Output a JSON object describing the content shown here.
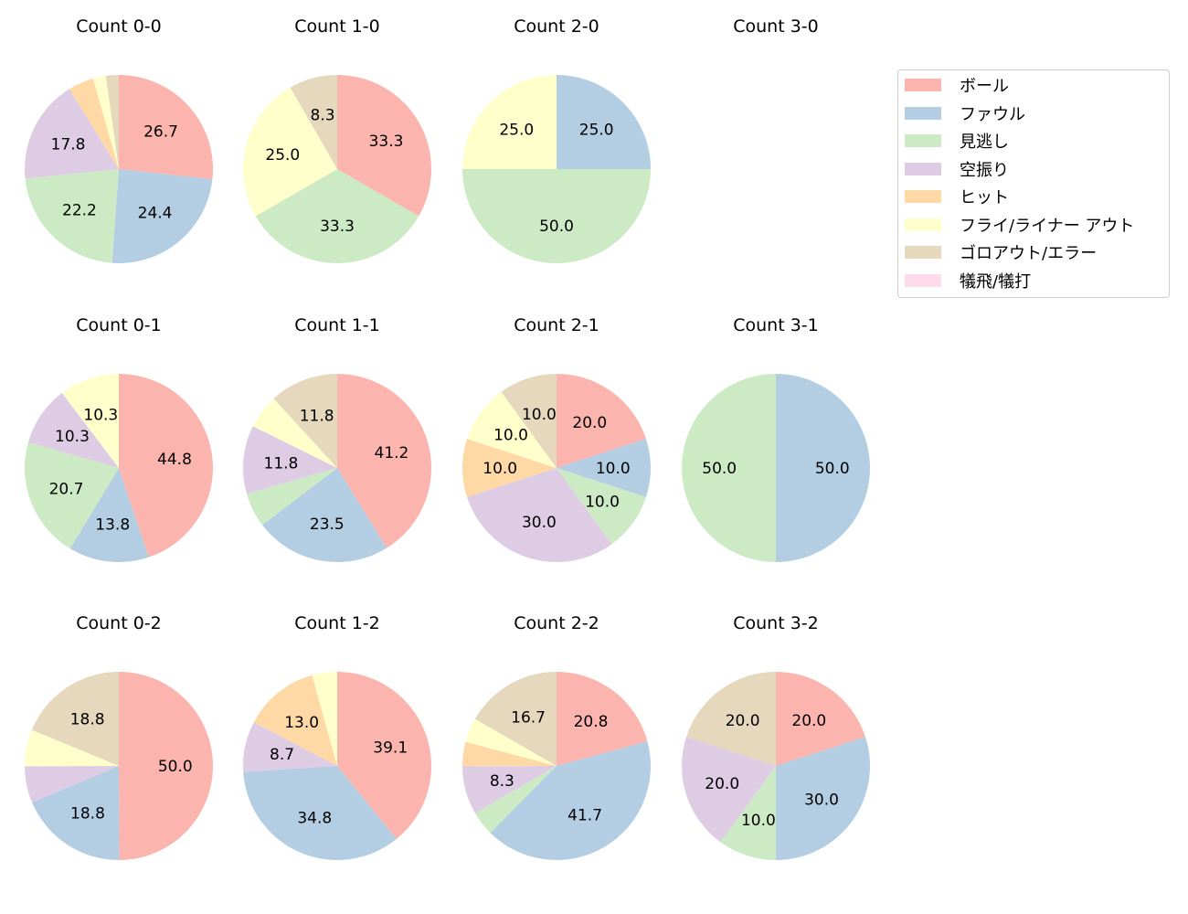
{
  "chart_data": {
    "type": "pie",
    "legend_placement": "upper-right",
    "categories": [
      "ボール",
      "ファウル",
      "見逃し",
      "空振り",
      "ヒット",
      "フライ/ライナー アウト",
      "ゴロアウト/エラー",
      "犠飛/犠打"
    ],
    "colors": [
      "#fbb4ae",
      "#b3cde3",
      "#ccebc5",
      "#decbe4",
      "#fed9a6",
      "#ffffcc",
      "#e5d8bd",
      "#fddaec"
    ],
    "charts": [
      {
        "title": "Count 0-0",
        "values": [
          26.7,
          24.4,
          22.2,
          17.8,
          4.4,
          2.2,
          2.2,
          0
        ]
      },
      {
        "title": "Count 1-0",
        "values": [
          33.3,
          0,
          33.3,
          0,
          0,
          25.0,
          8.3,
          0
        ]
      },
      {
        "title": "Count 2-0",
        "values": [
          0,
          25.0,
          50.0,
          0,
          0,
          25.0,
          0,
          0
        ]
      },
      {
        "title": "Count 3-0",
        "values": []
      },
      {
        "title": "Count 0-1",
        "values": [
          44.8,
          13.8,
          20.7,
          10.3,
          0,
          10.3,
          0,
          0
        ]
      },
      {
        "title": "Count 1-1",
        "values": [
          41.2,
          23.5,
          5.9,
          11.8,
          0,
          5.9,
          11.8,
          0
        ]
      },
      {
        "title": "Count 2-1",
        "values": [
          20.0,
          10.0,
          10.0,
          30.0,
          10.0,
          10.0,
          10.0,
          0
        ]
      },
      {
        "title": "Count 3-1",
        "values": [
          0,
          50.0,
          50.0,
          0,
          0,
          0,
          0,
          0
        ]
      },
      {
        "title": "Count 0-2",
        "values": [
          50.0,
          18.8,
          0,
          6.3,
          0,
          6.3,
          18.8,
          0
        ]
      },
      {
        "title": "Count 1-2",
        "values": [
          39.1,
          34.8,
          0,
          8.7,
          13.0,
          4.3,
          0,
          0
        ]
      },
      {
        "title": "Count 2-2",
        "values": [
          20.8,
          41.7,
          4.2,
          8.3,
          4.2,
          4.2,
          16.7,
          0
        ]
      },
      {
        "title": "Count 3-2",
        "values": [
          20.0,
          30.0,
          10.0,
          20.0,
          0,
          0,
          20.0,
          0
        ]
      }
    ]
  }
}
